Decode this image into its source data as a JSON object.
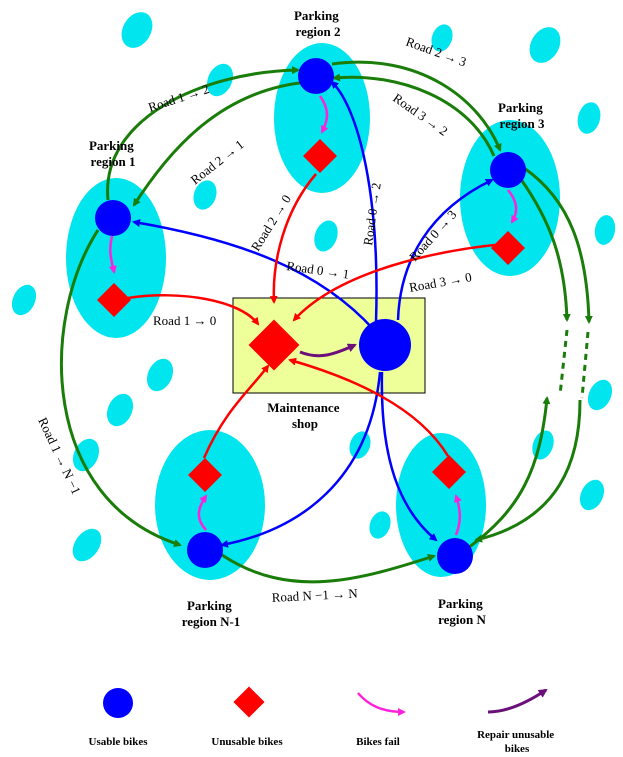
{
  "regions": {
    "r1": {
      "line1": "Parking",
      "line2": "region 1"
    },
    "r2": {
      "line1": "Parking",
      "line2": "region 2"
    },
    "r3": {
      "line1": "Parking",
      "line2": "region 3"
    },
    "rn1": {
      "line1": "Parking",
      "line2": "region N-1"
    },
    "rn": {
      "line1": "Parking",
      "line2": "region N"
    }
  },
  "shop": {
    "line1": "Maintenance",
    "line2": "shop"
  },
  "roads": {
    "r1_2": "Road 1 → 2",
    "r2_1": "Road 2 → 1",
    "r2_3": "Road 2 → 3",
    "r3_2": "Road 3 → 2",
    "r2_0": "Road 2 → 0",
    "r0_2": "Road 0 → 2",
    "r0_1": "Road 0 → 1",
    "r0_3": "Road 0 → 3",
    "r3_0": "Road 3 → 0",
    "r1_0": "Road 1 → 0",
    "r1_n1": "Road 1 → N −1",
    "rn1_n": "Road N −1 → N"
  },
  "legend": {
    "usable": "Usable bikes",
    "unusable": "Unusable bikes",
    "fail": "Bikes fail",
    "repair_line1": "Repair unusable",
    "repair_line2": "bikes"
  },
  "colors": {
    "region_fill": "#00e5ee",
    "usable": "#0000ff",
    "unusable": "#ff0000",
    "shop_fill": "#eeff99",
    "green_road": "#1a7d0a",
    "blue_road": "#0000ff",
    "red_road": "#ff0000",
    "fail_arrow": "#ff22dd",
    "repair_arrow": "#6b0f7a"
  }
}
